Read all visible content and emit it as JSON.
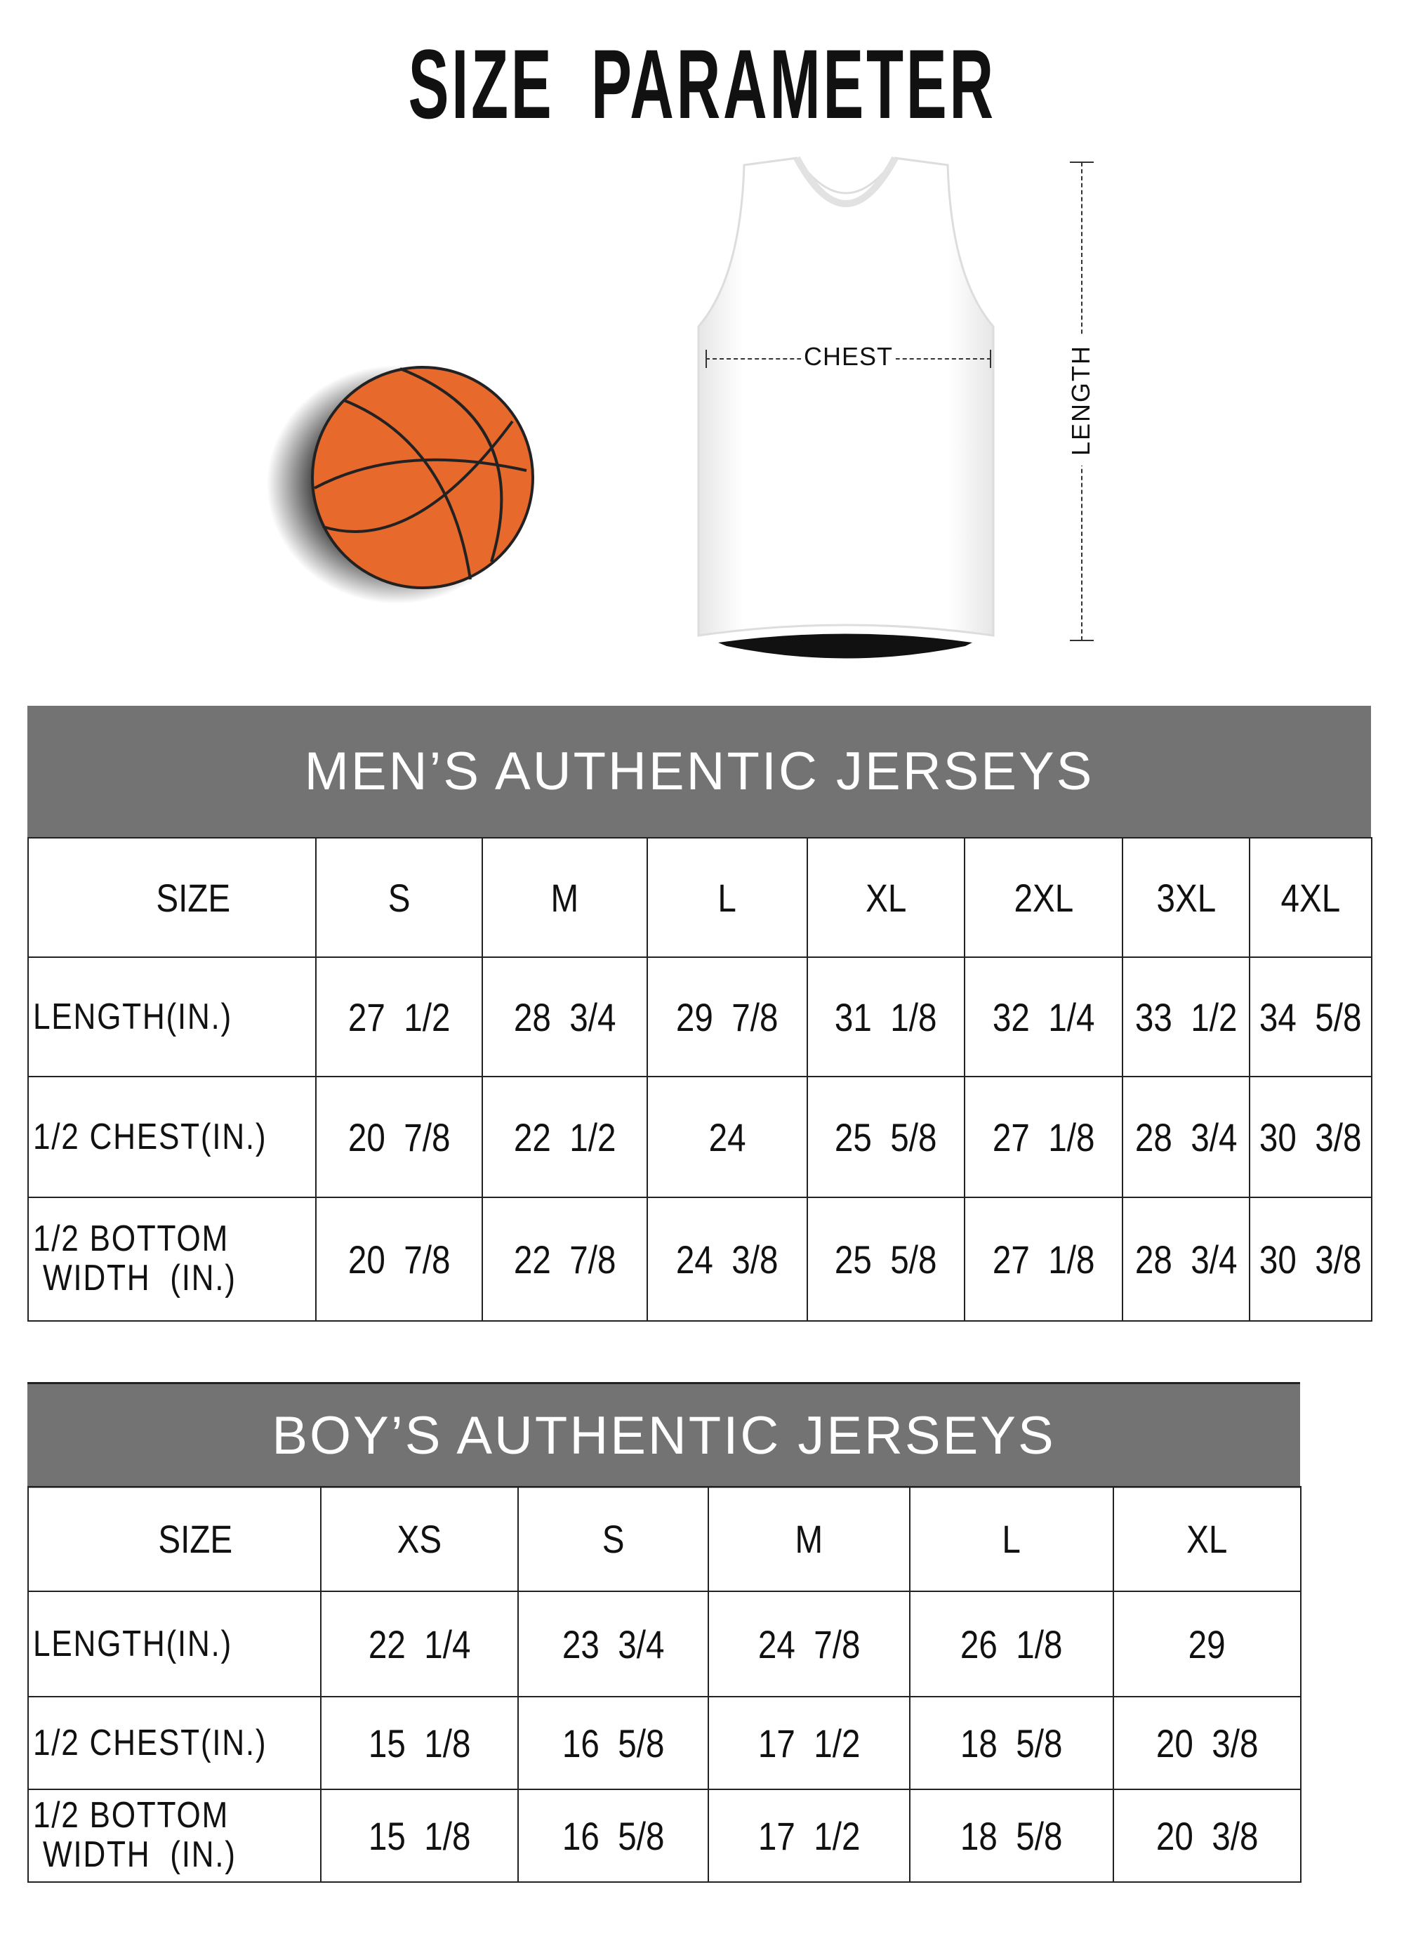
{
  "title": "SIZE  PARAMETER",
  "diagram": {
    "chest_label": "CHEST",
    "length_label": "LENGTH",
    "ball_color": "#e8692c",
    "header_color": "#737373"
  },
  "mens": {
    "heading": "MEN’S AUTHENTIC JERSEYS",
    "columns": [
      "SIZE",
      "S",
      "M",
      "L",
      "XL",
      "2XL",
      "3XL",
      "4XL"
    ],
    "rows": [
      {
        "label": "LENGTH(IN.)",
        "values": [
          "27  1/2",
          "28  3/4",
          "29  7/8",
          "31  1/8",
          "32  1/4",
          "33  1/2",
          "34  5/8"
        ]
      },
      {
        "label": "1/2 CHEST(IN.)",
        "values": [
          "20  7/8",
          "22  1/2",
          "24",
          "25  5/8",
          "27  1/8",
          "28  3/4",
          "30  3/8"
        ]
      },
      {
        "label": "1/2 BOTTOM\n WIDTH  (IN.)",
        "values": [
          "20  7/8",
          "22  7/8",
          "24  3/8",
          "25  5/8",
          "27  1/8",
          "28  3/4",
          "30  3/8"
        ]
      }
    ]
  },
  "boys": {
    "heading": "BOY’S AUTHENTIC JERSEYS",
    "columns": [
      "SIZE",
      "XS",
      "S",
      "M",
      "L",
      "XL"
    ],
    "rows": [
      {
        "label": "LENGTH(IN.)",
        "values": [
          "22  1/4",
          "23  3/4",
          "24  7/8",
          "26  1/8",
          "29"
        ]
      },
      {
        "label": "1/2 CHEST(IN.)",
        "values": [
          "15  1/8",
          "16  5/8",
          "17  1/2",
          "18  5/8",
          "20  3/8"
        ]
      },
      {
        "label": "1/2 BOTTOM\n WIDTH  (IN.)",
        "values": [
          "15  1/8",
          "16  5/8",
          "17  1/2",
          "18  5/8",
          "20  3/8"
        ]
      }
    ]
  }
}
